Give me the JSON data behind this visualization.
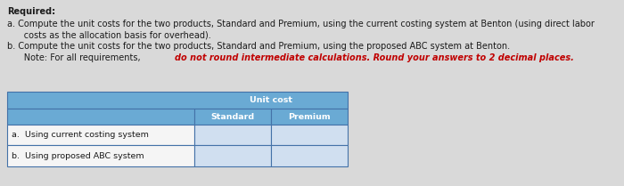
{
  "required_label": "Required:",
  "line_a": "a. Compute the unit costs for the two products, Standard and Premium, using the current costing system at Benton (using direct labor",
  "line_a2": "      costs as the allocation basis for overhead).",
  "line_b": "b. Compute the unit costs for the two products, Standard and Premium, using the proposed ABC system at Benton.",
  "line_note_prefix": "      Note: For all requirements, ",
  "line_note_bold": "do not round intermediate calculations. Round your answers to 2 decimal places.",
  "table_header_merged": "Unit cost",
  "col1_header": "Standard",
  "col2_header": "Premium",
  "row_labels": [
    "a.  Using current costing system",
    "b.  Using proposed ABC system"
  ],
  "header_bg_color": "#6aaad4",
  "header_text_color": "#ffffff",
  "cell_bg_color": "#d0dff0",
  "white_cell_bg": "#f5f5f5",
  "table_border_color": "#4472a8",
  "note_color": "#c00000",
  "text_color_dark": "#1a1a1a",
  "bg_color": "#d9d9d9",
  "font_size_body": 7.0,
  "font_size_table": 6.8
}
